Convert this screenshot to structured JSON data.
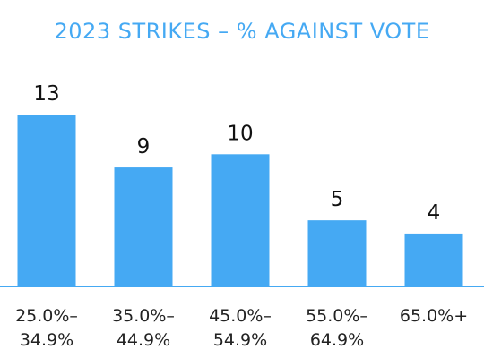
{
  "colors": {
    "accent": "#45a9f3",
    "title": "#45a9f3",
    "axis": "#45a9f3",
    "text": "#111111"
  },
  "chart_data": {
    "type": "bar",
    "title": "2023 STRIKES – % AGAINST VOTE",
    "xlabel": "",
    "ylabel": "",
    "categories": [
      [
        "25.0%–",
        "34.9%"
      ],
      [
        "35.0%–",
        "44.9%"
      ],
      [
        "45.0%–",
        "54.9%"
      ],
      [
        "55.0%–",
        "64.9%"
      ],
      [
        "65.0%+"
      ]
    ],
    "values": [
      13,
      9,
      10,
      5,
      4
    ],
    "data_labels": [
      "13",
      "9",
      "10",
      "5",
      "4"
    ],
    "grid": false,
    "legend": "none"
  }
}
